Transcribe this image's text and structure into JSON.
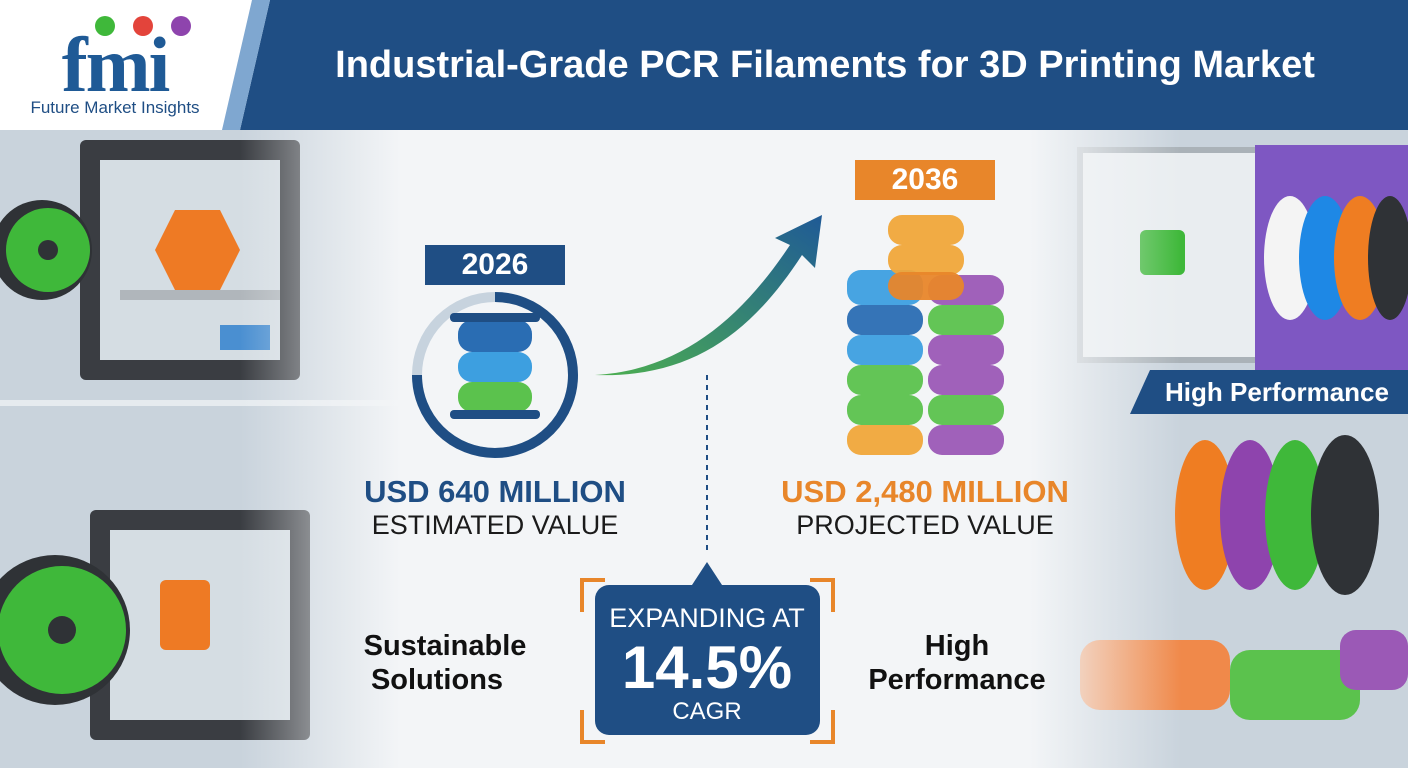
{
  "header": {
    "logo": "fmi",
    "company": "Future Market Insights",
    "title": "Industrial-Grade PCR Filaments for 3D Printing Market"
  },
  "start": {
    "year": "2026",
    "value": "USD 640 MILLION",
    "label": "ESTIMATED VALUE"
  },
  "end": {
    "year": "2036",
    "value": "USD 2,480 MILLION",
    "label": "PROJECTED VALUE"
  },
  "growth": {
    "line1": "EXPANDING AT",
    "rate": "14.5%",
    "line2": "CAGR"
  },
  "captions": {
    "left": [
      "Sustainable",
      "Solutions"
    ],
    "right": [
      "High",
      "Performance"
    ]
  },
  "badge": "High Performance"
}
